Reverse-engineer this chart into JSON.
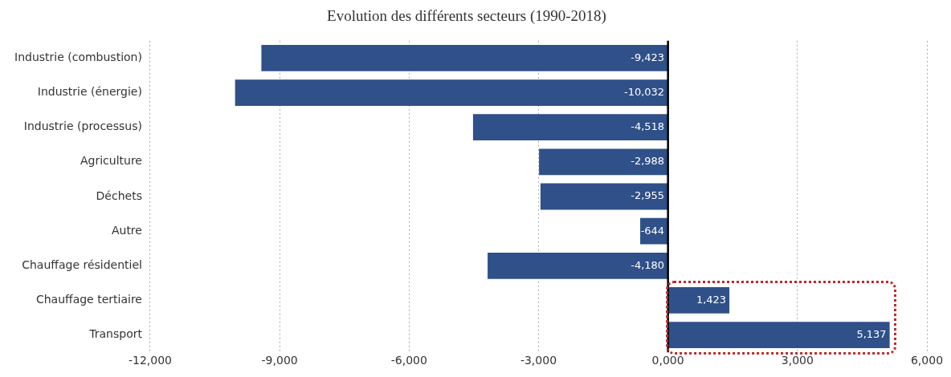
{
  "chart_data": {
    "type": "bar",
    "orientation": "horizontal",
    "title": "Evolution des différents secteurs (1990-2018)",
    "categories": [
      "Industrie (combustion)",
      "Industrie (énergie)",
      "Industrie (processus)",
      "Agriculture",
      "Déchets",
      "Autre",
      "Chauffage résidentiel",
      "Chauffage tertiaire",
      "Transport"
    ],
    "values": [
      -9423,
      -10032,
      -4518,
      -2988,
      -2955,
      -644,
      -4180,
      1423,
      5137
    ],
    "value_labels": [
      "-9,423",
      "-10,032",
      "-4,518",
      "-2,988",
      "-2,955",
      "-644",
      "-4,180",
      "1,423",
      "5,137"
    ],
    "color": "#2f5088",
    "xlim": [
      -12000,
      6000
    ],
    "xticks": [
      {
        "value": -12000,
        "label": "-12,000"
      },
      {
        "value": -9000,
        "label": "-9,000"
      },
      {
        "value": -6000,
        "label": "-6,000"
      },
      {
        "value": -3000,
        "label": "-3,000"
      },
      {
        "value": 0,
        "label": "0,000"
      },
      {
        "value": 3000,
        "label": "3,000"
      },
      {
        "value": 6000,
        "label": "6,000"
      }
    ],
    "grid": "x",
    "legend": false
  }
}
